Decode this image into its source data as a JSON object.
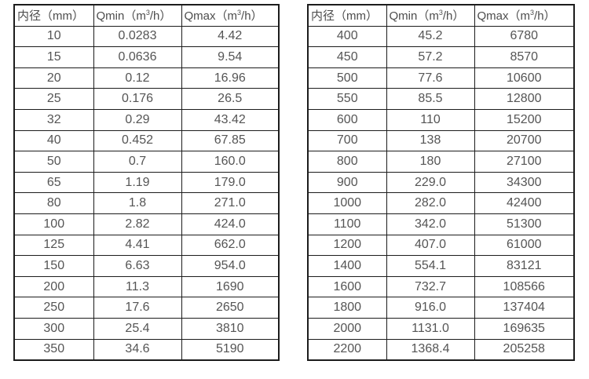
{
  "columns": {
    "diameter_label": "内径（mm）",
    "qmin_prefix": "Qmin（m",
    "qmax_prefix": "Qmax（m",
    "sup_digit": "3",
    "unit_suffix": "/h）"
  },
  "left_table": {
    "rows": [
      [
        "10",
        "0.0283",
        "4.42"
      ],
      [
        "15",
        "0.0636",
        "9.54"
      ],
      [
        "20",
        "0.12",
        "16.96"
      ],
      [
        "25",
        "0.176",
        "26.5"
      ],
      [
        "32",
        "0.29",
        "43.42"
      ],
      [
        "40",
        "0.452",
        "67.85"
      ],
      [
        "50",
        "0.7",
        "160.0"
      ],
      [
        "65",
        "1.19",
        "179.0"
      ],
      [
        "80",
        "1.8",
        "271.0"
      ],
      [
        "100",
        "2.82",
        "424.0"
      ],
      [
        "125",
        "4.41",
        "662.0"
      ],
      [
        "150",
        "6.63",
        "954.0"
      ],
      [
        "200",
        "11.3",
        "1690"
      ],
      [
        "250",
        "17.6",
        "2650"
      ],
      [
        "300",
        "25.4",
        "3810"
      ],
      [
        "350",
        "34.6",
        "5190"
      ]
    ]
  },
  "right_table": {
    "rows": [
      [
        "400",
        "45.2",
        "6780"
      ],
      [
        "450",
        "57.2",
        "8570"
      ],
      [
        "500",
        "77.6",
        "10600"
      ],
      [
        "550",
        "85.5",
        "12800"
      ],
      [
        "600",
        "110",
        "15200"
      ],
      [
        "700",
        "138",
        "20700"
      ],
      [
        "800",
        "180",
        "27100"
      ],
      [
        "900",
        "229.0",
        "34300"
      ],
      [
        "1000",
        "282.0",
        "42400"
      ],
      [
        "1100",
        "342.0",
        "51300"
      ],
      [
        "1200",
        "407.0",
        "61000"
      ],
      [
        "1400",
        "554.1",
        "83121"
      ],
      [
        "1600",
        "732.7",
        "108566"
      ],
      [
        "1800",
        "916.0",
        "137404"
      ],
      [
        "2000",
        "1131.0",
        "169635"
      ],
      [
        "2200",
        "1368.4",
        "205258"
      ]
    ]
  }
}
